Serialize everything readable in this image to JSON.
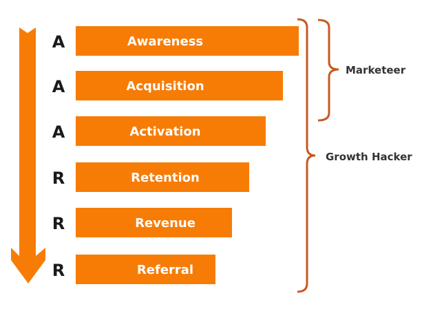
{
  "colors": {
    "bar": "#f77c06",
    "arrow": "#f77c06",
    "bracket": "#c65a1e",
    "letter": "#1a1a1a"
  },
  "stages": [
    {
      "letter": "A",
      "label": "Awareness"
    },
    {
      "letter": "A",
      "label": "Acquisition"
    },
    {
      "letter": "A",
      "label": "Activation"
    },
    {
      "letter": "R",
      "label": "Retention"
    },
    {
      "letter": "R",
      "label": "Revenue"
    },
    {
      "letter": "R",
      "label": "Referral"
    }
  ],
  "roles": {
    "marketeer": "Marketeer",
    "growth_hacker": "Growth Hacker"
  },
  "icons": {
    "flow": "down-arrow-icon",
    "bracket": "curly-bracket-icon"
  }
}
